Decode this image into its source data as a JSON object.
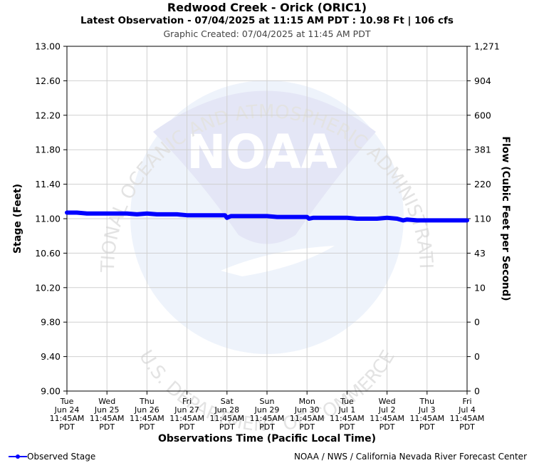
{
  "header": {
    "title": "Redwood Creek - Orick (ORIC1)",
    "latest": "Latest Observation - 07/04/2025 at 11:15 AM PDT : 10.98 Ft | 106 cfs",
    "created": "Graphic Created: 07/04/2025 at 11:45 AM PDT"
  },
  "footer": {
    "legend_label": "Observed Stage",
    "credit": "NOAA / NWS / California Nevada River Forecast Center"
  },
  "watermark": {
    "arc_top": "NATIONAL OCEANIC AND ATMOSPHERIC ADMINISTRATION",
    "arc_bottom": "U.S. DEPARTMENT OF COMMERCE",
    "logo_word": "NOAA"
  },
  "colors": {
    "series": "#0000ff",
    "grid": "#d0d0d0",
    "watermark": "#e6eaf8"
  },
  "chart_data": {
    "type": "line",
    "ylabel": "Stage (Feet)",
    "y2label": "Flow (Cubic Feet per Second)",
    "xlabel": "Observations Time (Pacific Local Time)",
    "ylim": [
      9.0,
      13.0
    ],
    "yticks": [
      "13.00",
      "12.60",
      "12.20",
      "11.80",
      "11.40",
      "11.00",
      "10.60",
      "10.20",
      "9.80",
      "9.40",
      "9.00"
    ],
    "y2ticks": [
      "1,271",
      "904",
      "600",
      "381",
      "220",
      "110",
      "43",
      "10",
      "0",
      "0",
      "0"
    ],
    "xticks": [
      [
        "Tue",
        "Jun 24",
        "11:45AM",
        "PDT"
      ],
      [
        "Wed",
        "Jun 25",
        "11:45AM",
        "PDT"
      ],
      [
        "Thu",
        "Jun 26",
        "11:45AM",
        "PDT"
      ],
      [
        "Fri",
        "Jun 27",
        "11:45AM",
        "PDT"
      ],
      [
        "Sat",
        "Jun 28",
        "11:45AM",
        "PDT"
      ],
      [
        "Sun",
        "Jun 29",
        "11:45AM",
        "PDT"
      ],
      [
        "Mon",
        "Jun 30",
        "11:45AM",
        "PDT"
      ],
      [
        "Tue",
        "Jul 1",
        "11:45AM",
        "PDT"
      ],
      [
        "Wed",
        "Jul 2",
        "11:45AM",
        "PDT"
      ],
      [
        "Thu",
        "Jul 3",
        "11:45AM",
        "PDT"
      ],
      [
        "Fri",
        "Jul 4",
        "11:45AM",
        "PDT"
      ]
    ],
    "series": [
      {
        "name": "Observed Stage",
        "x_days_from_first_tick": [
          0.0,
          0.25,
          0.5,
          0.75,
          1.0,
          1.25,
          1.5,
          1.75,
          2.0,
          2.25,
          2.5,
          2.75,
          3.0,
          3.25,
          3.5,
          3.75,
          3.95,
          4.0,
          4.1,
          4.25,
          4.5,
          4.75,
          5.0,
          5.25,
          5.5,
          5.75,
          6.0,
          6.05,
          6.15,
          6.3,
          6.5,
          6.75,
          7.0,
          7.25,
          7.5,
          7.75,
          8.0,
          8.25,
          8.4,
          8.5,
          8.75,
          9.0,
          9.25,
          9.5,
          9.75,
          10.0
        ],
        "values": [
          11.07,
          11.07,
          11.06,
          11.06,
          11.06,
          11.06,
          11.06,
          11.05,
          11.06,
          11.05,
          11.05,
          11.05,
          11.04,
          11.04,
          11.04,
          11.04,
          11.04,
          11.01,
          11.03,
          11.03,
          11.03,
          11.03,
          11.03,
          11.02,
          11.02,
          11.02,
          11.02,
          11.0,
          11.01,
          11.01,
          11.01,
          11.01,
          11.01,
          11.0,
          11.0,
          11.0,
          11.01,
          11.0,
          10.98,
          10.99,
          10.98,
          10.98,
          10.98,
          10.98,
          10.98,
          10.98
        ]
      }
    ]
  }
}
